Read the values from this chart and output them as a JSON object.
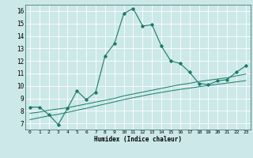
{
  "xlabel": "Humidex (Indice chaleur)",
  "bg_color": "#cce8e8",
  "grid_color": "#ffffff",
  "line_color": "#1a7a6a",
  "xlim": [
    -0.5,
    23.5
  ],
  "ylim": [
    6.5,
    16.5
  ],
  "xticks": [
    0,
    1,
    2,
    3,
    4,
    5,
    6,
    7,
    8,
    9,
    10,
    11,
    12,
    13,
    14,
    15,
    16,
    17,
    18,
    19,
    20,
    21,
    22,
    23
  ],
  "yticks": [
    7,
    8,
    9,
    10,
    11,
    12,
    13,
    14,
    15,
    16
  ],
  "line1_x": [
    0,
    1,
    2,
    3,
    4,
    5,
    6,
    7,
    8,
    9,
    10,
    11,
    12,
    13,
    14,
    15,
    16,
    17,
    18,
    19,
    20,
    21,
    22,
    23
  ],
  "line1_y": [
    8.3,
    8.3,
    7.7,
    6.9,
    8.2,
    9.6,
    8.9,
    9.5,
    12.4,
    13.4,
    15.8,
    16.2,
    14.8,
    14.9,
    13.2,
    12.0,
    11.8,
    11.1,
    10.2,
    10.1,
    10.4,
    10.5,
    11.1,
    11.6
  ],
  "line2_x": [
    0,
    1,
    2,
    3,
    4,
    5,
    6,
    7,
    8,
    9,
    10,
    11,
    12,
    13,
    14,
    15,
    16,
    17,
    18,
    19,
    20,
    21,
    22,
    23
  ],
  "line2_y": [
    7.8,
    7.9,
    8.05,
    8.15,
    8.25,
    8.4,
    8.55,
    8.7,
    8.85,
    9.0,
    9.2,
    9.35,
    9.5,
    9.65,
    9.8,
    9.95,
    10.1,
    10.2,
    10.35,
    10.45,
    10.55,
    10.65,
    10.8,
    10.95
  ],
  "line3_x": [
    0,
    1,
    2,
    3,
    4,
    5,
    6,
    7,
    8,
    9,
    10,
    11,
    12,
    13,
    14,
    15,
    16,
    17,
    18,
    19,
    20,
    21,
    22,
    23
  ],
  "line3_y": [
    7.3,
    7.45,
    7.6,
    7.72,
    7.88,
    8.05,
    8.2,
    8.38,
    8.55,
    8.72,
    8.9,
    9.05,
    9.2,
    9.35,
    9.48,
    9.6,
    9.72,
    9.82,
    9.93,
    10.03,
    10.13,
    10.22,
    10.32,
    10.42
  ]
}
